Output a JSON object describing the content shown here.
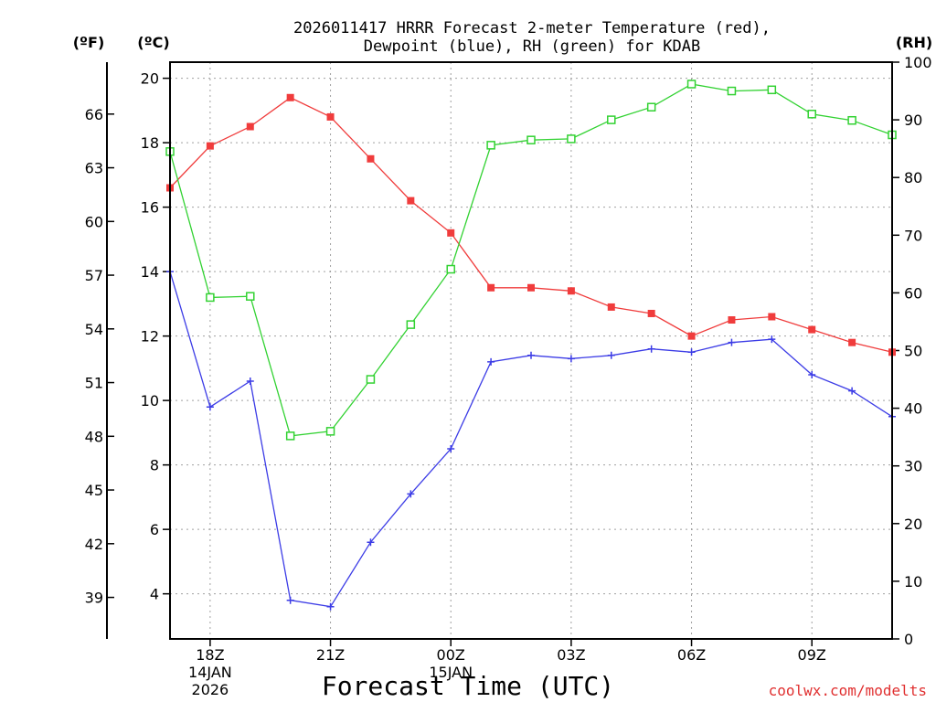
{
  "chart_data": {
    "type": "line",
    "title_line1": "2026011417 HRRR Forecast 2-meter Temperature (red),",
    "title_line2": "Dewpoint (blue), RH (green) for KDAB",
    "unit_f": "(ºF)",
    "unit_c": "(ºC)",
    "unit_rh": "(RH)",
    "xlabel": "Forecast Time (UTC)",
    "credit": "coolwx.com/modelts",
    "x_hours": [
      17,
      18,
      19,
      20,
      21,
      22,
      23,
      24,
      25,
      26,
      27,
      28,
      29,
      30,
      31,
      32,
      33,
      34,
      35
    ],
    "x_range": [
      17,
      35
    ],
    "ylim_c": [
      2.6,
      20.5
    ],
    "ylim_rh": [
      0,
      100
    ],
    "x_ticks": [
      {
        "hour": 18,
        "line1": "18Z",
        "line2": "14JAN",
        "line3": "2026"
      },
      {
        "hour": 21,
        "line1": "21Z",
        "line2": "",
        "line3": ""
      },
      {
        "hour": 24,
        "line1": "00Z",
        "line2": "15JAN",
        "line3": ""
      },
      {
        "hour": 27,
        "line1": "03Z",
        "line2": "",
        "line3": ""
      },
      {
        "hour": 30,
        "line1": "06Z",
        "line2": "",
        "line3": ""
      },
      {
        "hour": 33,
        "line1": "09Z",
        "line2": "",
        "line3": ""
      }
    ],
    "c_ticks": [
      4,
      6,
      8,
      10,
      12,
      14,
      16,
      18,
      20
    ],
    "f_ticks": [
      39,
      42,
      45,
      48,
      51,
      54,
      57,
      60,
      63,
      66
    ],
    "rh_ticks": [
      0,
      10,
      20,
      30,
      40,
      50,
      60,
      70,
      80,
      90,
      100
    ],
    "series": [
      {
        "name": "Temperature",
        "unit": "C",
        "color": "#f03c3c",
        "marker": "filled-square",
        "values": [
          16.6,
          17.9,
          18.5,
          19.4,
          18.8,
          17.5,
          16.2,
          15.2,
          13.5,
          13.5,
          13.4,
          12.9,
          12.7,
          12.0,
          12.5,
          12.6,
          12.2,
          11.8,
          11.5
        ]
      },
      {
        "name": "Dewpoint",
        "unit": "C",
        "color": "#3c3ce6",
        "marker": "plus",
        "values": [
          14.0,
          9.8,
          10.6,
          3.8,
          3.6,
          5.6,
          7.1,
          8.5,
          11.2,
          11.4,
          11.3,
          11.4,
          11.6,
          11.5,
          11.8,
          11.9,
          10.8,
          10.3,
          9.5
        ]
      },
      {
        "name": "RH",
        "unit": "%",
        "color": "#32d232",
        "marker": "open-square",
        "values": [
          84.5,
          59.2,
          59.4,
          35.2,
          36.0,
          45.0,
          54.5,
          64.1,
          85.6,
          86.5,
          86.7,
          90.0,
          92.2,
          96.2,
          95.0,
          95.2,
          91.0,
          89.9,
          87.4
        ]
      }
    ]
  }
}
